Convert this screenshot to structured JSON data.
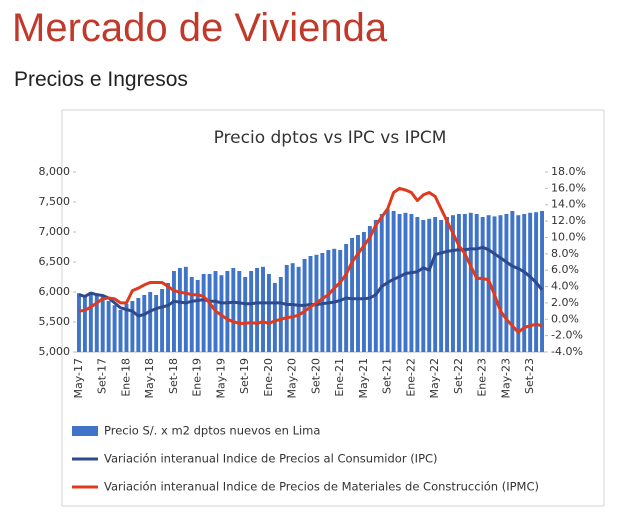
{
  "header": {
    "title": "Mercado de Vivienda",
    "subtitle": "Precios e Ingresos"
  },
  "chart_data": {
    "type": "bar",
    "title": "Precio dptos vs IPC vs IPCM",
    "categories": [
      "May-17",
      null,
      null,
      null,
      "Set-17",
      null,
      null,
      null,
      "Ene-18",
      null,
      null,
      null,
      "May-18",
      null,
      null,
      null,
      "Set-18",
      null,
      null,
      null,
      "Ene-19",
      null,
      null,
      null,
      "May-19",
      null,
      null,
      null,
      "Set-19",
      null,
      null,
      null,
      "Ene-20",
      null,
      null,
      null,
      "May-20",
      null,
      null,
      null,
      "Set-20",
      null,
      null,
      null,
      "Ene-21",
      null,
      null,
      null,
      "May-21",
      null,
      null,
      null,
      "Set-21",
      null,
      null,
      null,
      "Ene-22",
      null,
      null,
      null,
      "May-22",
      null,
      null,
      null,
      "Set-22",
      null,
      null,
      null,
      "Ene-23",
      null,
      null,
      null,
      "May-23",
      null,
      null,
      null,
      "Set-23",
      null,
      null
    ],
    "series": [
      {
        "name": "Precio S/. x m2 dptos nuevos en Lima",
        "type": "bar",
        "color": "#3f74c8",
        "values": [
          5980,
          5950,
          6000,
          5980,
          5920,
          5850,
          5780,
          5700,
          5800,
          5850,
          5900,
          5950,
          6000,
          5950,
          6050,
          6150,
          6350,
          6400,
          6420,
          6250,
          6200,
          6300,
          6300,
          6350,
          6280,
          6350,
          6400,
          6350,
          6250,
          6350,
          6400,
          6420,
          6300,
          6150,
          6250,
          6450,
          6480,
          6420,
          6550,
          6600,
          6620,
          6650,
          6700,
          6720,
          6700,
          6800,
          6900,
          6950,
          7000,
          7100,
          7200,
          7300,
          7380,
          7350,
          7300,
          7320,
          7300,
          7250,
          7200,
          7220,
          7250,
          7200,
          7250,
          7280,
          7300,
          7300,
          7320,
          7300,
          7250,
          7280,
          7260,
          7280,
          7300,
          7350,
          7280,
          7300,
          7320,
          7330,
          7350
        ]
      },
      {
        "name": "Variación interanual Indice de Precios al Consumidor (IPC)",
        "type": "line",
        "axis": "y2",
        "color": "#2e4a8c",
        "values": [
          3.0,
          2.8,
          3.2,
          3.0,
          2.9,
          2.6,
          2.0,
          1.4,
          1.2,
          1.0,
          0.4,
          0.6,
          1.0,
          1.3,
          1.5,
          1.7,
          2.2,
          2.1,
          2.0,
          2.2,
          2.3,
          2.4,
          2.2,
          2.2,
          2.0,
          2.0,
          2.1,
          2.0,
          1.9,
          1.9,
          2.0,
          2.0,
          2.0,
          2.0,
          2.0,
          1.8,
          1.8,
          1.7,
          1.7,
          1.8,
          1.8,
          1.9,
          2.0,
          2.1,
          2.3,
          2.6,
          2.5,
          2.5,
          2.5,
          2.6,
          3.0,
          4.0,
          4.5,
          4.9,
          5.2,
          5.6,
          5.7,
          5.8,
          6.3,
          6.0,
          7.9,
          8.1,
          8.3,
          8.4,
          8.5,
          8.5,
          8.6,
          8.6,
          8.8,
          8.5,
          8.0,
          7.5,
          7.0,
          6.5,
          6.2,
          5.8,
          5.2,
          4.5,
          3.6
        ]
      },
      {
        "name": "Variación interanual Indice de Precios de Materiales de Construcción (IPMC)",
        "type": "line",
        "axis": "y2",
        "color": "#e03a1e",
        "values": [
          1.0,
          1.1,
          1.5,
          2.0,
          2.5,
          2.6,
          2.5,
          2.0,
          2.0,
          3.5,
          3.8,
          4.2,
          4.5,
          4.5,
          4.5,
          4.0,
          3.5,
          3.3,
          3.2,
          3.0,
          3.0,
          2.8,
          2.0,
          1.0,
          0.5,
          0.0,
          -0.3,
          -0.5,
          -0.5,
          -0.4,
          -0.5,
          -0.3,
          -0.5,
          -0.2,
          0.0,
          0.2,
          0.3,
          0.5,
          1.0,
          1.5,
          2.0,
          2.5,
          3.0,
          3.8,
          4.5,
          5.5,
          7.0,
          8.0,
          9.0,
          10.0,
          11.5,
          12.5,
          13.5,
          15.5,
          16.0,
          15.8,
          15.5,
          14.5,
          15.2,
          15.5,
          15.0,
          13.5,
          12.0,
          10.5,
          9.0,
          8.0,
          6.5,
          5.0,
          5.0,
          4.8,
          3.0,
          1.0,
          0.0,
          -0.8,
          -1.6,
          -1.0,
          -0.8,
          -0.6,
          -0.8
        ]
      }
    ],
    "ylim": [
      5000,
      8000
    ],
    "yticks": [
      {
        "value": 5000,
        "label": "5,000"
      },
      {
        "value": 5500,
        "label": "5,500"
      },
      {
        "value": 6000,
        "label": "6,000"
      },
      {
        "value": 6500,
        "label": "6,500"
      },
      {
        "value": 7000,
        "label": "7,000"
      },
      {
        "value": 7500,
        "label": "7,500"
      },
      {
        "value": 8000,
        "label": "8,000"
      }
    ],
    "y2lim": [
      -4,
      18
    ],
    "y2ticks": [
      {
        "value": -4,
        "label": "-4.0%"
      },
      {
        "value": -2,
        "label": "-2.0%"
      },
      {
        "value": 0,
        "label": "0.0%"
      },
      {
        "value": 2,
        "label": "2.0%"
      },
      {
        "value": 4,
        "label": "4.0%"
      },
      {
        "value": 6,
        "label": "6.0%"
      },
      {
        "value": 8,
        "label": "8.0%"
      },
      {
        "value": 10,
        "label": "10.0%"
      },
      {
        "value": 12,
        "label": "12.0%"
      },
      {
        "value": 14,
        "label": "14.0%"
      },
      {
        "value": 16,
        "label": "16.0%"
      },
      {
        "value": 18,
        "label": "18.0%"
      }
    ],
    "legend": "bottom"
  }
}
